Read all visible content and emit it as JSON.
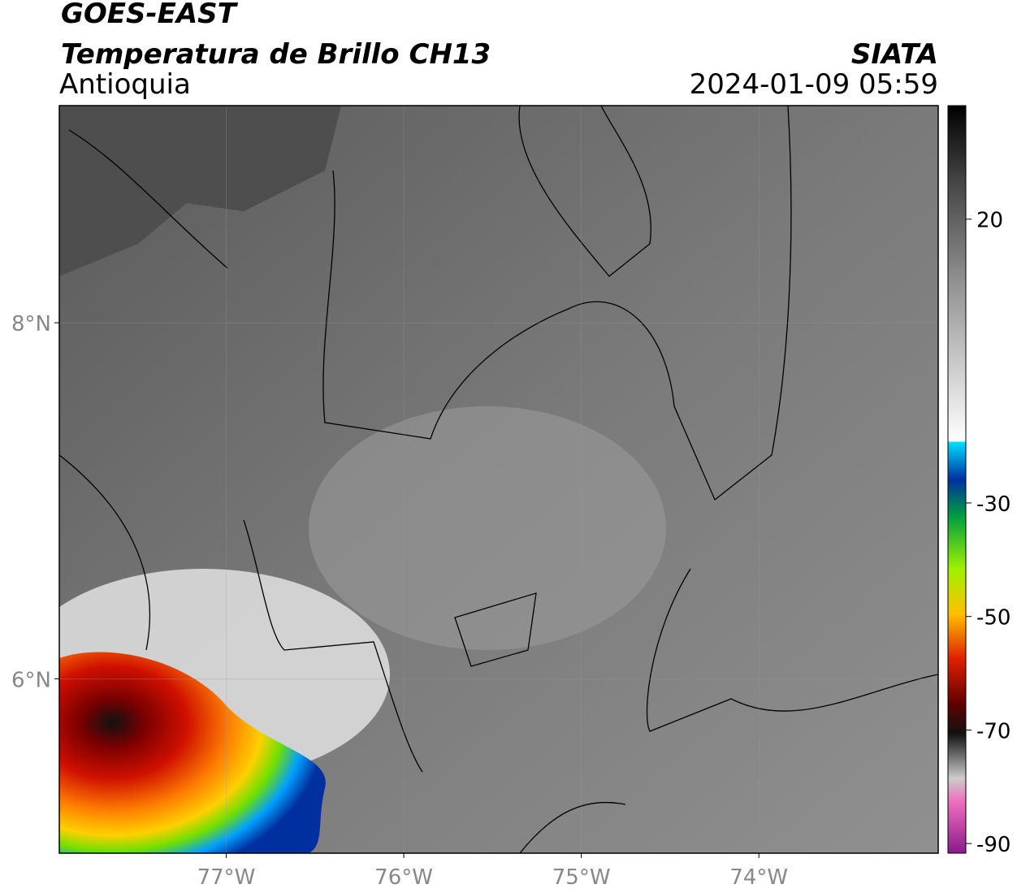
{
  "header": {
    "title": "GOES-EAST",
    "subtitle": "Temperatura de Brillo CH13",
    "region": "Antioquia",
    "source": "SIATA",
    "datetime": "2024-01-09 05:59"
  },
  "map": {
    "xlim": [
      -77.94,
      -72.99
    ],
    "ylim": [
      5.02,
      9.22
    ],
    "xticks": [
      {
        "value": -77,
        "label": "77°W"
      },
      {
        "value": -76,
        "label": "76°W"
      },
      {
        "value": -75,
        "label": "75°W"
      },
      {
        "value": -74,
        "label": "74°W"
      }
    ],
    "yticks": [
      {
        "value": 8,
        "label": "8°N"
      },
      {
        "value": 6,
        "label": "6°N"
      }
    ],
    "grid": true
  },
  "colorbar": {
    "lim": [
      -91.7,
      40
    ],
    "ticks": [
      20,
      -30,
      -50,
      -70,
      -90
    ]
  }
}
